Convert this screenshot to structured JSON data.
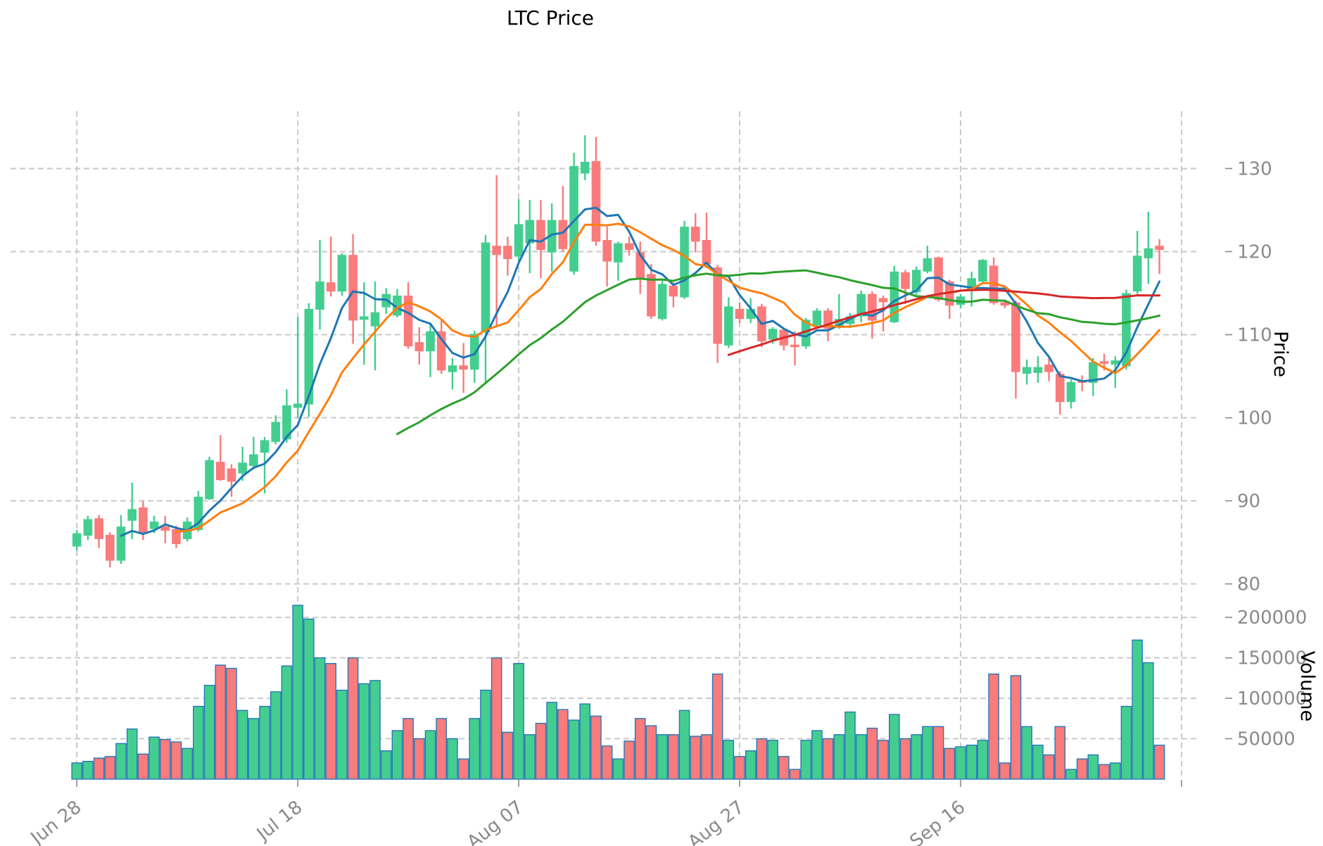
{
  "title": "LTC Price",
  "chart_data": {
    "type": "candlestick",
    "title": "LTC Price",
    "price_axis": {
      "label": "Price",
      "ticks": [
        80,
        90,
        100,
        110,
        120,
        130
      ],
      "range": [
        56.5,
        136.9
      ]
    },
    "volume_axis": {
      "label": "Volume",
      "ticks": [
        50000,
        100000,
        150000,
        200000
      ],
      "range": [
        0,
        826000
      ]
    },
    "x_axis": {
      "index_range": [
        -6,
        101.66
      ],
      "tick_labels": [
        {
          "index": 0,
          "label": "Jun 28"
        },
        {
          "index": 20,
          "label": "Jul 18"
        },
        {
          "index": 40,
          "label": "Aug 07"
        },
        {
          "index": 60,
          "label": "Aug 27"
        },
        {
          "index": 80,
          "label": "Sep 16"
        },
        {
          "index": 100,
          "label": ""
        }
      ]
    },
    "moving_averages": [
      {
        "period": 5,
        "color": "#1f77b4"
      },
      {
        "period": 10,
        "color": "#ff7f0e"
      },
      {
        "period": 30,
        "color": "#2ca02c"
      },
      {
        "period": 60,
        "color": "#d62728"
      }
    ],
    "colors": {
      "up": "#43ce8f",
      "down": "#f97b7b",
      "volume_edge": "#2878b8",
      "grid": "#c9c9c9",
      "tick_text": "#8a8a8a"
    },
    "candles": {
      "columns": [
        "open",
        "high",
        "low",
        "close",
        "volume"
      ],
      "rows": [
        [
          84.5,
          86.5,
          84.0,
          86.1,
          20000
        ],
        [
          85.8,
          88.2,
          85.3,
          87.8,
          22000
        ],
        [
          87.9,
          88.3,
          84.3,
          85.4,
          26000
        ],
        [
          85.9,
          86.2,
          82.0,
          82.8,
          28000
        ],
        [
          82.8,
          88.3,
          82.4,
          86.9,
          44000
        ],
        [
          87.6,
          92.2,
          85.4,
          89.0,
          62000
        ],
        [
          89.2,
          90.0,
          85.3,
          86.0,
          31000
        ],
        [
          86.6,
          88.2,
          86.1,
          87.5,
          52000
        ],
        [
          86.9,
          88.2,
          84.9,
          86.4,
          49000
        ],
        [
          86.6,
          87.0,
          84.3,
          84.8,
          46000
        ],
        [
          85.4,
          88.0,
          85.1,
          87.5,
          38000
        ],
        [
          86.5,
          91.2,
          86.3,
          90.5,
          90000
        ],
        [
          90.2,
          95.3,
          90.1,
          94.9,
          116000
        ],
        [
          94.7,
          97.9,
          92.4,
          92.5,
          141000
        ],
        [
          93.9,
          94.4,
          90.5,
          92.3,
          137000
        ],
        [
          93.3,
          96.5,
          92.4,
          94.6,
          85000
        ],
        [
          94.2,
          97.7,
          93.8,
          95.6,
          75000
        ],
        [
          95.8,
          97.7,
          90.9,
          97.3,
          90000
        ],
        [
          97.1,
          100.3,
          96.8,
          99.5,
          108000
        ],
        [
          97.4,
          103.4,
          97.0,
          101.5,
          140000
        ],
        [
          101.2,
          112.1,
          100.0,
          101.7,
          215000
        ],
        [
          101.6,
          113.8,
          100.1,
          113.1,
          198000
        ],
        [
          113.0,
          121.4,
          110.6,
          116.4,
          150000
        ],
        [
          116.3,
          121.8,
          114.6,
          115.2,
          143000
        ],
        [
          115.2,
          119.8,
          114.7,
          119.6,
          110000
        ],
        [
          119.6,
          122.1,
          108.9,
          111.7,
          150000
        ],
        [
          111.8,
          116.3,
          106.4,
          112.2,
          118000
        ],
        [
          111.0,
          116.4,
          105.7,
          112.7,
          122000
        ],
        [
          113.3,
          115.6,
          112.5,
          114.9,
          35000
        ],
        [
          112.3,
          115.5,
          112.1,
          114.7,
          60000
        ],
        [
          114.7,
          116.3,
          108.3,
          108.6,
          75000
        ],
        [
          109.1,
          110.9,
          106.4,
          108.0,
          50000
        ],
        [
          108.0,
          111.4,
          104.9,
          110.4,
          60000
        ],
        [
          110.4,
          111.7,
          105.3,
          105.7,
          75000
        ],
        [
          105.5,
          107.2,
          103.4,
          106.3,
          50000
        ],
        [
          106.3,
          109.0,
          103.0,
          105.8,
          25000
        ],
        [
          105.8,
          110.5,
          104.2,
          110.1,
          75000
        ],
        [
          110.3,
          122.0,
          104.0,
          121.1,
          110000
        ],
        [
          120.7,
          129.2,
          110.9,
          119.6,
          150000
        ],
        [
          120.7,
          121.8,
          117.1,
          119.1,
          58000
        ],
        [
          119.4,
          126.3,
          118.8,
          123.3,
          143000
        ],
        [
          121.0,
          126.2,
          117.4,
          123.8,
          55000
        ],
        [
          123.8,
          126.2,
          116.8,
          120.2,
          69000
        ],
        [
          119.9,
          125.8,
          117.6,
          123.8,
          95000
        ],
        [
          123.8,
          127.9,
          120.0,
          120.3,
          86000
        ],
        [
          117.6,
          131.9,
          117.2,
          130.3,
          73000
        ],
        [
          129.4,
          134.0,
          128.6,
          130.8,
          93000
        ],
        [
          130.9,
          133.8,
          120.7,
          121.2,
          78000
        ],
        [
          121.4,
          123.0,
          115.8,
          118.8,
          41000
        ],
        [
          118.7,
          121.2,
          116.5,
          121.0,
          25000
        ],
        [
          121.0,
          121.8,
          119.5,
          120.2,
          47000
        ],
        [
          119.9,
          121.2,
          114.9,
          116.8,
          75000
        ],
        [
          117.3,
          118.5,
          111.9,
          112.2,
          66000
        ],
        [
          111.9,
          116.5,
          111.7,
          116.1,
          55000
        ],
        [
          115.9,
          116.3,
          113.3,
          114.6,
          55000
        ],
        [
          114.5,
          123.7,
          114.3,
          123.0,
          85000
        ],
        [
          123.0,
          124.6,
          119.9,
          121.2,
          53000
        ],
        [
          121.4,
          124.7,
          118.0,
          118.5,
          55000
        ],
        [
          118.1,
          118.4,
          106.6,
          108.9,
          130000
        ],
        [
          108.7,
          114.5,
          108.4,
          113.4,
          48000
        ],
        [
          113.1,
          113.9,
          111.4,
          111.9,
          28000
        ],
        [
          111.9,
          114.4,
          111.4,
          113.1,
          35000
        ],
        [
          113.4,
          113.7,
          108.5,
          109.2,
          50000
        ],
        [
          109.4,
          110.9,
          108.9,
          110.7,
          48000
        ],
        [
          110.6,
          110.8,
          108.1,
          108.7,
          28000
        ],
        [
          108.8,
          110.4,
          106.3,
          108.5,
          12000
        ],
        [
          108.6,
          112.0,
          108.3,
          111.8,
          48000
        ],
        [
          111.1,
          113.2,
          110.8,
          112.9,
          60000
        ],
        [
          112.9,
          113.2,
          109.2,
          110.7,
          50000
        ],
        [
          110.9,
          114.9,
          110.7,
          111.9,
          55000
        ],
        [
          111.3,
          112.6,
          110.8,
          112.2,
          83000
        ],
        [
          112.2,
          115.3,
          111.5,
          114.9,
          55000
        ],
        [
          114.9,
          115.2,
          109.5,
          111.7,
          63000
        ],
        [
          114.4,
          114.7,
          110.4,
          113.9,
          48000
        ],
        [
          111.5,
          118.3,
          111.4,
          117.6,
          80000
        ],
        [
          117.5,
          117.8,
          113.7,
          115.5,
          50000
        ],
        [
          115.1,
          118.2,
          114.8,
          117.8,
          55000
        ],
        [
          117.6,
          120.7,
          117.4,
          119.2,
          65000
        ],
        [
          119.3,
          119.4,
          114.0,
          114.2,
          65000
        ],
        [
          116.4,
          116.6,
          111.9,
          113.5,
          38000
        ],
        [
          113.6,
          114.9,
          113.2,
          114.6,
          40000
        ],
        [
          115.3,
          117.6,
          113.4,
          116.8,
          42000
        ],
        [
          116.4,
          119.1,
          116.1,
          119.0,
          48000
        ],
        [
          118.3,
          119.3,
          113.6,
          113.8,
          130000
        ],
        [
          113.9,
          114.2,
          113.2,
          113.5,
          20000
        ],
        [
          113.9,
          114.1,
          102.3,
          105.5,
          128000
        ],
        [
          105.3,
          107.0,
          104.0,
          106.1,
          65000
        ],
        [
          105.4,
          107.4,
          104.2,
          106.1,
          42000
        ],
        [
          106.4,
          107.2,
          104.4,
          105.5,
          30000
        ],
        [
          105.3,
          105.6,
          100.4,
          101.9,
          65000
        ],
        [
          101.9,
          104.6,
          101.1,
          104.3,
          12000
        ],
        [
          104.5,
          105.1,
          103.2,
          104.2,
          25000
        ],
        [
          104.2,
          107.2,
          102.6,
          106.7,
          30000
        ],
        [
          106.8,
          107.7,
          105.7,
          106.5,
          18000
        ],
        [
          106.4,
          107.4,
          103.6,
          106.9,
          20000
        ],
        [
          106.2,
          115.4,
          105.8,
          115.0,
          90000
        ],
        [
          115.2,
          122.5,
          114.9,
          119.5,
          172000
        ],
        [
          119.2,
          124.8,
          116.1,
          120.4,
          144000
        ],
        [
          120.7,
          121.5,
          117.3,
          120.2,
          42000
        ]
      ]
    }
  }
}
